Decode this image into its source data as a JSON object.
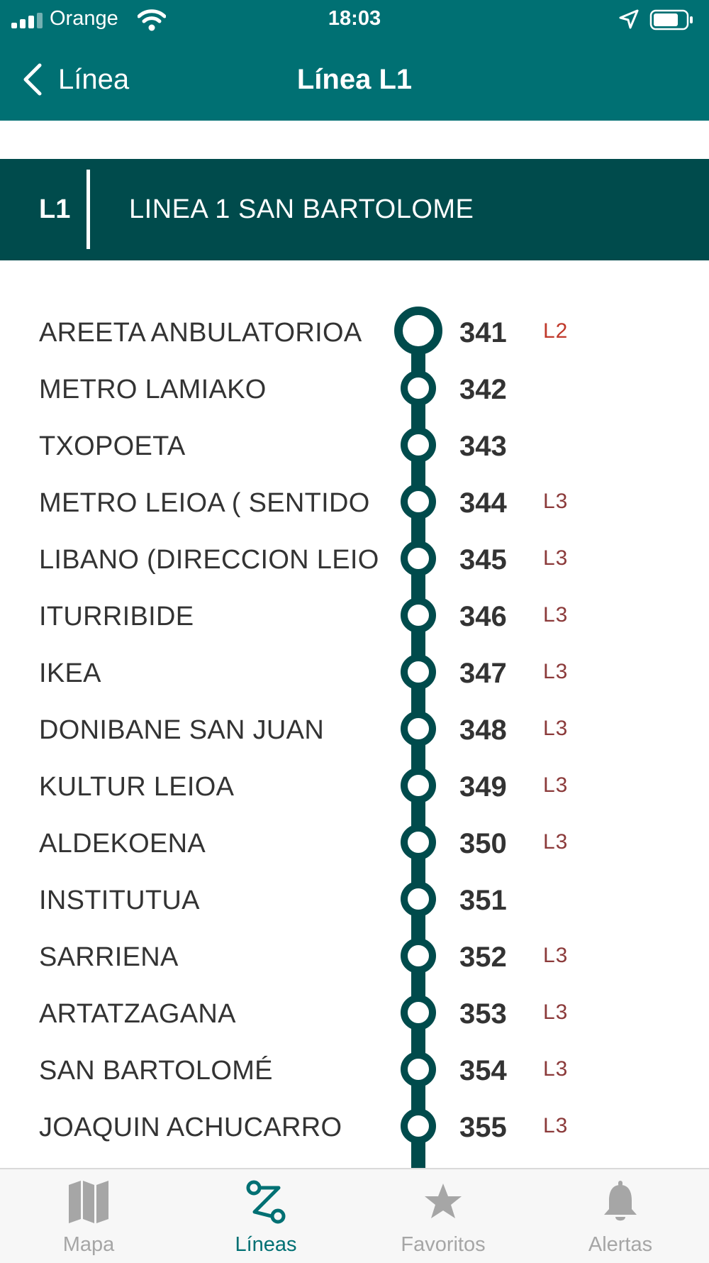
{
  "status_bar": {
    "carrier": "Orange",
    "time": "18:03"
  },
  "nav": {
    "back_label": "Línea",
    "title": "Línea L1"
  },
  "line_header": {
    "code": "L1",
    "name": "LINEA 1 SAN BARTOLOME"
  },
  "colors": {
    "primary": "#007073",
    "dark": "#004b4c",
    "badge_l2": "#c0392b",
    "badge_l3": "#8b3a3a"
  },
  "stops": [
    {
      "name": "AREETA ANBULATORIOA",
      "number": "341",
      "badge": "L2"
    },
    {
      "name": "METRO LAMIAKO",
      "number": "342",
      "badge": ""
    },
    {
      "name": "TXOPOETA",
      "number": "343",
      "badge": ""
    },
    {
      "name": "METRO LEIOA ( SENTIDO",
      "number": "344",
      "badge": "L3"
    },
    {
      "name": "LIBANO (DIRECCION LEIOA",
      "number": "345",
      "badge": "L3"
    },
    {
      "name": "ITURRIBIDE",
      "number": "346",
      "badge": "L3"
    },
    {
      "name": "IKEA",
      "number": "347",
      "badge": "L3"
    },
    {
      "name": "DONIBANE SAN JUAN",
      "number": "348",
      "badge": "L3"
    },
    {
      "name": "KULTUR LEIOA",
      "number": "349",
      "badge": "L3"
    },
    {
      "name": "ALDEKOENA",
      "number": "350",
      "badge": "L3"
    },
    {
      "name": "INSTITUTUA",
      "number": "351",
      "badge": ""
    },
    {
      "name": "SARRIENA",
      "number": "352",
      "badge": "L3"
    },
    {
      "name": "ARTATZAGANA",
      "number": "353",
      "badge": "L3"
    },
    {
      "name": "SAN BARTOLOMÉ",
      "number": "354",
      "badge": "L3"
    },
    {
      "name": "JOAQUIN ACHUCARRO",
      "number": "355",
      "badge": "L3"
    }
  ],
  "tabs": [
    {
      "label": "Mapa",
      "icon": "map-icon",
      "active": false
    },
    {
      "label": "Líneas",
      "icon": "route-icon",
      "active": true
    },
    {
      "label": "Favoritos",
      "icon": "star-icon",
      "active": false
    },
    {
      "label": "Alertas",
      "icon": "bell-icon",
      "active": false
    }
  ]
}
